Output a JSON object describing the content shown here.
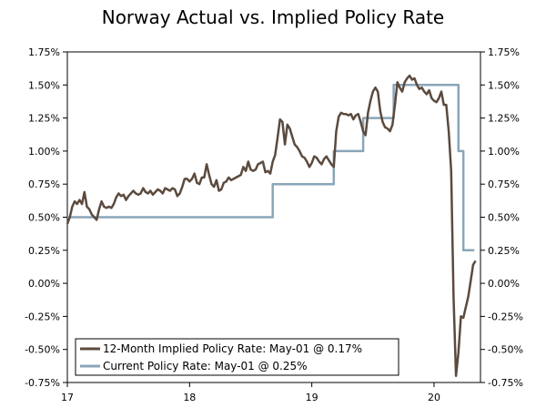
{
  "chart_data": {
    "type": "line",
    "title": "Norway Actual vs. Implied Policy Rate",
    "xlabel": "",
    "ylabel": "",
    "x_ticks": [
      {
        "label": "17",
        "value": 2017.0
      },
      {
        "label": "18",
        "value": 2018.0
      },
      {
        "label": "19",
        "value": 2019.0
      },
      {
        "label": "20",
        "value": 2020.0
      }
    ],
    "xlim": [
      2017.0,
      2020.38
    ],
    "ylim": [
      -0.75,
      1.75
    ],
    "y_ticks": [
      1.75,
      1.5,
      1.25,
      1.0,
      0.75,
      0.5,
      0.25,
      0.0,
      -0.25,
      -0.5,
      -0.75
    ],
    "y_tick_labels": [
      "1.75%",
      "1.50%",
      "1.25%",
      "1.00%",
      "0.75%",
      "0.50%",
      "0.25%",
      "0.00%",
      "-0.25%",
      "-0.50%",
      "-0.75%"
    ],
    "grid": false,
    "legend_position": "bottom-left",
    "series": [
      {
        "name": "12-Month Implied Policy Rate: May-01 @ 0.17%",
        "color": "#5b4a3e",
        "style": "line",
        "x": [
          2017.0,
          2017.02,
          2017.04,
          2017.06,
          2017.08,
          2017.1,
          2017.12,
          2017.14,
          2017.16,
          2017.18,
          2017.2,
          2017.22,
          2017.24,
          2017.26,
          2017.28,
          2017.3,
          2017.32,
          2017.34,
          2017.36,
          2017.38,
          2017.4,
          2017.42,
          2017.44,
          2017.46,
          2017.48,
          2017.5,
          2017.52,
          2017.54,
          2017.56,
          2017.58,
          2017.6,
          2017.62,
          2017.64,
          2017.66,
          2017.68,
          2017.7,
          2017.72,
          2017.74,
          2017.76,
          2017.78,
          2017.8,
          2017.82,
          2017.84,
          2017.86,
          2017.88,
          2017.9,
          2017.92,
          2017.94,
          2017.96,
          2017.98,
          2018.0,
          2018.02,
          2018.04,
          2018.06,
          2018.08,
          2018.1,
          2018.12,
          2018.14,
          2018.16,
          2018.18,
          2018.2,
          2018.22,
          2018.24,
          2018.26,
          2018.28,
          2018.3,
          2018.32,
          2018.34,
          2018.36,
          2018.38,
          2018.4,
          2018.42,
          2018.44,
          2018.46,
          2018.48,
          2018.5,
          2018.52,
          2018.54,
          2018.56,
          2018.58,
          2018.6,
          2018.62,
          2018.64,
          2018.66,
          2018.68,
          2018.7,
          2018.72,
          2018.74,
          2018.76,
          2018.78,
          2018.8,
          2018.82,
          2018.84,
          2018.86,
          2018.88,
          2018.9,
          2018.92,
          2018.94,
          2018.96,
          2018.98,
          2019.0,
          2019.02,
          2019.04,
          2019.06,
          2019.08,
          2019.1,
          2019.12,
          2019.14,
          2019.16,
          2019.18,
          2019.2,
          2019.22,
          2019.24,
          2019.26,
          2019.28,
          2019.3,
          2019.32,
          2019.34,
          2019.36,
          2019.38,
          2019.4,
          2019.42,
          2019.44,
          2019.46,
          2019.48,
          2019.5,
          2019.52,
          2019.54,
          2019.56,
          2019.58,
          2019.6,
          2019.62,
          2019.64,
          2019.66,
          2019.68,
          2019.7,
          2019.72,
          2019.74,
          2019.76,
          2019.78,
          2019.8,
          2019.82,
          2019.84,
          2019.86,
          2019.88,
          2019.9,
          2019.92,
          2019.94,
          2019.96,
          2019.98,
          2020.0,
          2020.02,
          2020.04,
          2020.06,
          2020.08,
          2020.1,
          2020.12,
          2020.14,
          2020.16,
          2020.18,
          2020.2,
          2020.22,
          2020.24,
          2020.26,
          2020.28,
          2020.3,
          2020.32,
          2020.34
        ],
        "values": [
          0.45,
          0.5,
          0.58,
          0.62,
          0.6,
          0.63,
          0.6,
          0.69,
          0.58,
          0.56,
          0.52,
          0.5,
          0.48,
          0.56,
          0.62,
          0.58,
          0.57,
          0.58,
          0.57,
          0.6,
          0.65,
          0.68,
          0.66,
          0.67,
          0.63,
          0.66,
          0.68,
          0.7,
          0.68,
          0.67,
          0.68,
          0.72,
          0.69,
          0.68,
          0.7,
          0.67,
          0.69,
          0.71,
          0.7,
          0.68,
          0.72,
          0.71,
          0.7,
          0.72,
          0.71,
          0.66,
          0.68,
          0.73,
          0.79,
          0.79,
          0.77,
          0.79,
          0.83,
          0.76,
          0.75,
          0.8,
          0.8,
          0.9,
          0.82,
          0.75,
          0.73,
          0.78,
          0.7,
          0.71,
          0.76,
          0.77,
          0.8,
          0.78,
          0.79,
          0.8,
          0.81,
          0.82,
          0.88,
          0.85,
          0.92,
          0.86,
          0.85,
          0.86,
          0.9,
          0.91,
          0.92,
          0.84,
          0.85,
          0.83,
          0.92,
          0.97,
          1.1,
          1.24,
          1.22,
          1.05,
          1.2,
          1.17,
          1.11,
          1.05,
          1.03,
          1.0,
          0.96,
          0.95,
          0.92,
          0.88,
          0.91,
          0.96,
          0.95,
          0.92,
          0.9,
          0.94,
          0.96,
          0.93,
          0.9,
          0.88,
          1.15,
          1.26,
          1.29,
          1.28,
          1.28,
          1.27,
          1.28,
          1.24,
          1.27,
          1.28,
          1.22,
          1.15,
          1.12,
          1.29,
          1.38,
          1.45,
          1.48,
          1.45,
          1.3,
          1.22,
          1.18,
          1.17,
          1.15,
          1.2,
          1.35,
          1.52,
          1.48,
          1.45,
          1.52,
          1.55,
          1.57,
          1.54,
          1.55,
          1.5,
          1.47,
          1.48,
          1.45,
          1.43,
          1.46,
          1.4,
          1.38,
          1.37,
          1.4,
          1.45,
          1.35,
          1.35,
          1.15,
          0.85,
          -0.1,
          -0.7,
          -0.52,
          -0.25,
          -0.26,
          -0.18,
          -0.1,
          0.02,
          0.14,
          0.17
        ]
      },
      {
        "name": "Current Policy Rate: May-01 @ 0.25%",
        "color": "#8aa6b8",
        "style": "step",
        "x": [
          2017.0,
          2018.68,
          2018.68,
          2019.18,
          2019.18,
          2019.42,
          2019.42,
          2019.67,
          2019.67,
          2019.93,
          2019.93,
          2020.2,
          2020.2,
          2020.24,
          2020.24,
          2020.33
        ],
        "values": [
          0.5,
          0.5,
          0.75,
          0.75,
          1.0,
          1.0,
          1.25,
          1.25,
          1.5,
          1.5,
          1.5,
          1.5,
          1.0,
          1.0,
          0.25,
          0.25
        ]
      }
    ]
  }
}
